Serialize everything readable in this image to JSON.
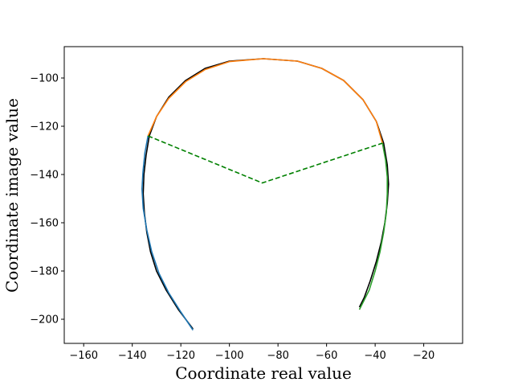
{
  "chart_data": {
    "type": "line",
    "xlabel": "Coordinate real value",
    "ylabel": "Coordinate image value",
    "xlim": [
      -168,
      -4
    ],
    "ylim": [
      -210,
      -87
    ],
    "x_ticks": [
      -160,
      -140,
      -120,
      -100,
      -80,
      -60,
      -40,
      -20
    ],
    "y_ticks": [
      -100,
      -120,
      -140,
      -160,
      -180,
      -200
    ],
    "x_tick_labels": [
      "−160",
      "−140",
      "−120",
      "−100",
      "−80",
      "−60",
      "−40",
      "−20"
    ],
    "y_tick_labels": [
      "−100",
      "−120",
      "−140",
      "−160",
      "−180",
      "−200"
    ],
    "grid": false,
    "series": [
      {
        "color": "#000000",
        "style": "solid",
        "points": [
          [
            -115,
            -204
          ],
          [
            -121,
            -196
          ],
          [
            -126,
            -188
          ],
          [
            -130,
            -180
          ],
          [
            -132.5,
            -172
          ],
          [
            -134,
            -164
          ],
          [
            -135,
            -156
          ],
          [
            -135.5,
            -148
          ],
          [
            -135.2,
            -140
          ],
          [
            -134.3,
            -132
          ],
          [
            -133,
            -124
          ],
          [
            -130,
            -116
          ],
          [
            -125,
            -108
          ],
          [
            -118,
            -101
          ],
          [
            -110,
            -96
          ],
          [
            -100,
            -93
          ],
          [
            -86,
            -92
          ],
          [
            -72,
            -93
          ],
          [
            -62,
            -96
          ],
          [
            -53,
            -101
          ],
          [
            -45,
            -109
          ],
          [
            -39.5,
            -118
          ],
          [
            -36.5,
            -127
          ],
          [
            -35,
            -136
          ],
          [
            -34.5,
            -144
          ],
          [
            -35,
            -152
          ],
          [
            -36,
            -160
          ],
          [
            -37.5,
            -168
          ],
          [
            -39.5,
            -176
          ],
          [
            -42,
            -184
          ],
          [
            -44.5,
            -191
          ],
          [
            -46.5,
            -195
          ]
        ]
      },
      {
        "color": "#1f77b4",
        "style": "solid",
        "points": [
          [
            -115,
            -204.5
          ],
          [
            -120,
            -197
          ],
          [
            -125,
            -189
          ],
          [
            -129,
            -181
          ],
          [
            -132,
            -172
          ],
          [
            -134,
            -163
          ],
          [
            -135.5,
            -154
          ],
          [
            -136,
            -146
          ],
          [
            -135.6,
            -139
          ],
          [
            -134.8,
            -131
          ],
          [
            -133.5,
            -124
          ]
        ]
      },
      {
        "color": "#ff7f0e",
        "style": "solid",
        "points": [
          [
            -133.5,
            -124
          ],
          [
            -130,
            -116
          ],
          [
            -125,
            -108.5
          ],
          [
            -118,
            -101.5
          ],
          [
            -110,
            -96.5
          ],
          [
            -100,
            -93.2
          ],
          [
            -86,
            -92
          ],
          [
            -72,
            -93
          ],
          [
            -62,
            -96
          ],
          [
            -53,
            -101
          ],
          [
            -45,
            -109
          ],
          [
            -39.5,
            -118
          ],
          [
            -37,
            -127
          ]
        ]
      },
      {
        "color": "#2ca02c",
        "style": "solid",
        "points": [
          [
            -37,
            -127
          ],
          [
            -35.7,
            -134
          ],
          [
            -35,
            -141
          ],
          [
            -35,
            -148
          ],
          [
            -35.4,
            -156
          ],
          [
            -36.5,
            -164
          ],
          [
            -38,
            -172
          ],
          [
            -40,
            -180
          ],
          [
            -42.5,
            -188
          ],
          [
            -46.5,
            -196
          ]
        ]
      },
      {
        "color": "#008000",
        "style": "dashed",
        "points": [
          [
            -133.5,
            -124
          ],
          [
            -86.5,
            -143.5
          ],
          [
            -37,
            -127
          ]
        ]
      }
    ]
  }
}
